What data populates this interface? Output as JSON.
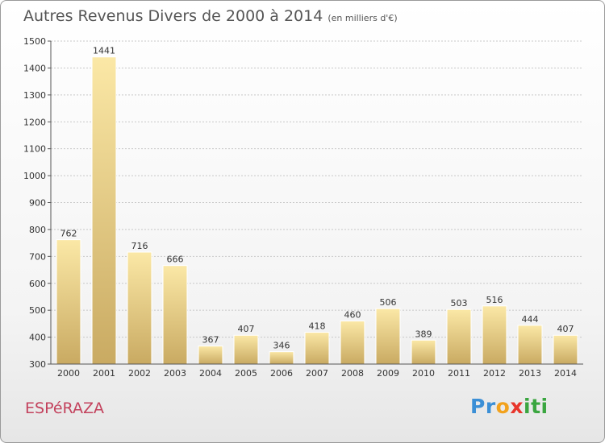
{
  "title": "Autres Revenus Divers de 2000 à 2014",
  "title_unit": "(en milliers d'€)",
  "commune": "ESPéRAZA",
  "logo": {
    "letters": [
      "P",
      "r",
      "o",
      "x",
      "i",
      "t",
      "i"
    ],
    "colors": [
      "#3b8fd6",
      "#3b8fd6",
      "#f2a21d",
      "#e8362c",
      "#3aa640",
      "#3aa640",
      "#3aa640"
    ]
  },
  "colors": {
    "bar_light": "#fbe8a6",
    "bar_dark": "#c9aa62",
    "grid": "#c8c8c8",
    "commune": "#c3425d"
  },
  "chart_data": {
    "type": "bar",
    "title": "Autres Revenus Divers de 2000 à 2014",
    "subtitle": "(en milliers d'€)",
    "xlabel": "",
    "ylabel": "",
    "categories": [
      "2000",
      "2001",
      "2002",
      "2003",
      "2004",
      "2005",
      "2006",
      "2007",
      "2008",
      "2009",
      "2010",
      "2011",
      "2012",
      "2013",
      "2014"
    ],
    "values": [
      762,
      1441,
      716,
      666,
      367,
      407,
      346,
      418,
      460,
      506,
      389,
      503,
      516,
      444,
      407
    ],
    "ylim": [
      300,
      1500
    ],
    "yticks": [
      300,
      400,
      500,
      600,
      700,
      800,
      900,
      1000,
      1100,
      1200,
      1300,
      1400,
      1500
    ],
    "grid": true,
    "data_labels": true
  }
}
